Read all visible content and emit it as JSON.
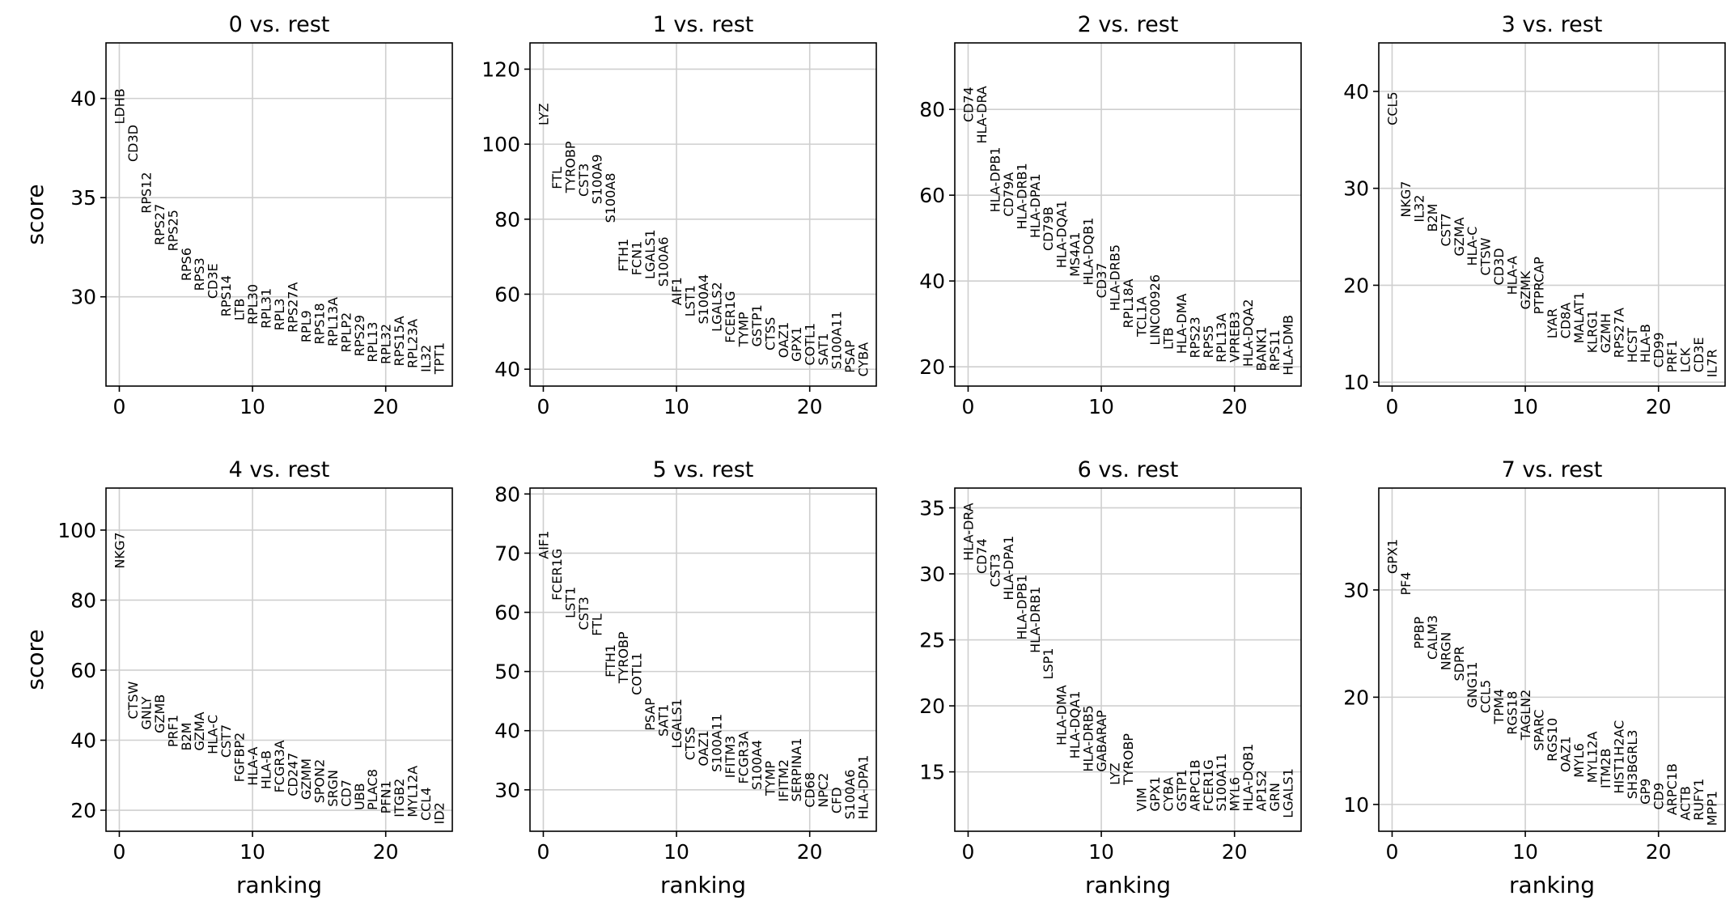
{
  "chart_data": [
    {
      "type": "scatter",
      "title": "0 vs. rest",
      "xlabel": "",
      "ylabel": "score",
      "xlim": [
        -1,
        25
      ],
      "ylim": [
        25.5,
        42.8
      ],
      "xticks": [
        0,
        10,
        20
      ],
      "yticks": [
        30,
        35,
        40
      ],
      "genes": [
        "LDHB",
        "CD3D",
        "RPS12",
        "RPS27",
        "RPS25",
        "RPS6",
        "RPS3",
        "CD3E",
        "RPS14",
        "LTB",
        "RPL30",
        "RPL31",
        "RPL3",
        "RPS27A",
        "RPL9",
        "RPS18",
        "RPL13A",
        "RPLP2",
        "RPS29",
        "RPL13",
        "RPL32",
        "RPS15A",
        "RPL23A",
        "IL32",
        "TPT1"
      ],
      "scores": [
        38.7,
        36.8,
        34.2,
        32.6,
        32.3,
        30.8,
        30.3,
        29.9,
        29.0,
        28.8,
        28.6,
        28.4,
        28.3,
        28.2,
        27.7,
        27.6,
        27.5,
        27.2,
        27.0,
        26.7,
        26.6,
        26.5,
        26.4,
        26.2,
        26.1
      ]
    },
    {
      "type": "scatter",
      "title": "1 vs. rest",
      "xlabel": "",
      "ylabel": "",
      "xlim": [
        -1,
        25
      ],
      "ylim": [
        35.5,
        127
      ],
      "xticks": [
        0,
        10,
        20
      ],
      "yticks": [
        40,
        60,
        80,
        100,
        120
      ],
      "genes": [
        "LYZ",
        "FTL",
        "TYROBP",
        "CST3",
        "S100A9",
        "S100A8",
        "FTH1",
        "FCN1",
        "LGALS1",
        "S100A6",
        "AIF1",
        "LST1",
        "S100A4",
        "LGALS2",
        "FCER1G",
        "TYMP",
        "GSTP1",
        "CTSS",
        "OAZ1",
        "GPX1",
        "COTL1",
        "SAT1",
        "S100A11",
        "PSAP",
        "CYBA"
      ],
      "scores": [
        105,
        88,
        87,
        86,
        84,
        79,
        66,
        65,
        64,
        62,
        57,
        54,
        52,
        50,
        47,
        46,
        46,
        45,
        43,
        42,
        41,
        41,
        40,
        39,
        38
      ]
    },
    {
      "type": "scatter",
      "title": "2 vs. rest",
      "xlabel": "",
      "ylabel": "",
      "xlim": [
        -1,
        25
      ],
      "ylim": [
        15.5,
        95.5
      ],
      "xticks": [
        0,
        10,
        20
      ],
      "yticks": [
        20,
        40,
        60,
        80
      ],
      "genes": [
        "CD74",
        "HLA-DRA",
        "HLA-DPB1",
        "CD79A",
        "HLA-DRB1",
        "HLA-DPA1",
        "CD79B",
        "HLA-DQA1",
        "MS4A1",
        "HLA-DQB1",
        "CD37",
        "HLA-DRB5",
        "RPL18A",
        "TCL1A",
        "LINC00926",
        "LTB",
        "HLA-DMA",
        "RPS23",
        "RPS5",
        "RPL13A",
        "VPREB3",
        "HLA-DQA2",
        "BANK1",
        "RPS11",
        "HLA-DMB"
      ],
      "scores": [
        77,
        72,
        56,
        55,
        52,
        50,
        47,
        43,
        41,
        39,
        36,
        33,
        29,
        27,
        25,
        24,
        23,
        22,
        22,
        21,
        21,
        20,
        19,
        19,
        18
      ]
    },
    {
      "type": "scatter",
      "title": "3 vs. rest",
      "xlabel": "",
      "ylabel": "",
      "xlim": [
        -1,
        25
      ],
      "ylim": [
        9.6,
        45
      ],
      "xticks": [
        0,
        10,
        20
      ],
      "yticks": [
        10,
        20,
        30,
        40
      ],
      "genes": [
        "CCL5",
        "NKG7",
        "IL32",
        "B2M",
        "CST7",
        "GZMA",
        "HLA-C",
        "CTSW",
        "CD3D",
        "HLA-A",
        "GZMK",
        "PTPRCAP",
        "LYAR",
        "CD8A",
        "MALAT1",
        "KLRG1",
        "GZMH",
        "RPS27A",
        "HCST",
        "HLA-B",
        "CD99",
        "PRF1",
        "LCK",
        "CD3E",
        "IL7R"
      ],
      "scores": [
        36.5,
        27,
        26.5,
        25.5,
        24,
        23,
        22,
        21,
        20,
        19,
        17.5,
        17,
        14.5,
        14.5,
        14,
        13,
        13,
        12.5,
        12,
        12,
        11.5,
        11,
        11,
        11,
        10.5
      ]
    },
    {
      "type": "scatter",
      "title": "4 vs. rest",
      "xlabel": "ranking",
      "ylabel": "score",
      "xlim": [
        -1,
        25
      ],
      "ylim": [
        14,
        112
      ],
      "xticks": [
        0,
        10,
        20
      ],
      "yticks": [
        20,
        40,
        60,
        80,
        100
      ],
      "genes": [
        "NKG7",
        "CTSW",
        "GNLY",
        "GZMB",
        "PRF1",
        "B2M",
        "GZMA",
        "HLA-C",
        "CST7",
        "FGFBP2",
        "HLA-A",
        "HLA-B",
        "FCGR3A",
        "CD247",
        "GZMM",
        "SPON2",
        "SRGN",
        "CD7",
        "UBB",
        "PLAC8",
        "PFN1",
        "ITGB2",
        "MYL12A",
        "CCL4",
        "ID2"
      ],
      "scores": [
        89,
        46,
        43,
        42,
        38,
        37,
        37,
        36,
        35,
        28,
        27,
        26,
        25,
        24,
        23,
        22,
        21,
        21,
        20,
        20,
        19,
        18,
        18,
        17,
        16
      ]
    },
    {
      "type": "scatter",
      "title": "5 vs. rest",
      "xlabel": "ranking",
      "ylabel": "",
      "xlim": [
        -1,
        25
      ],
      "ylim": [
        23,
        81
      ],
      "xticks": [
        0,
        10,
        20
      ],
      "yticks": [
        30,
        40,
        50,
        60,
        70,
        80
      ],
      "genes": [
        "AIF1",
        "FCER1G",
        "LST1",
        "CST3",
        "FTL",
        "FTH1",
        "TYROBP",
        "COTL1",
        "PSAP",
        "SAT1",
        "LGALS1",
        "CTSS",
        "OAZ1",
        "S100A11",
        "IFITM3",
        "FCGR3A",
        "S100A4",
        "TYMP",
        "IFITM2",
        "SERPINA1",
        "CD68",
        "NPC2",
        "CFD",
        "S100A6",
        "HLA-DPA1"
      ],
      "scores": [
        69,
        62,
        59,
        57,
        56,
        49,
        48,
        46,
        40,
        39,
        37,
        35,
        34,
        33,
        32,
        31,
        30,
        29,
        28,
        28,
        27,
        27,
        26,
        25,
        25
      ]
    },
    {
      "type": "scatter",
      "title": "6 vs. rest",
      "xlabel": "ranking",
      "ylabel": "",
      "xlim": [
        -1,
        25
      ],
      "ylim": [
        10.5,
        36.5
      ],
      "xticks": [
        0,
        10,
        20
      ],
      "yticks": [
        15,
        20,
        25,
        30,
        35
      ],
      "genes": [
        "HLA-DRA",
        "CD74",
        "CST3",
        "HLA-DPA1",
        "HLA-DPB1",
        "HLA-DRB1",
        "LSP1",
        "HLA-DMA",
        "HLA-DQA1",
        "HLA-DRB5",
        "GABARAP",
        "LYZ",
        "TYROBP",
        "VIM",
        "GPX1",
        "CYBA",
        "GSTP1",
        "ARPC1B",
        "FCER1G",
        "S100A11",
        "MYL6",
        "HLA-DQB1",
        "AP1S2",
        "GRN",
        "LGALS1"
      ],
      "scores": [
        31,
        30,
        29,
        28,
        25,
        24,
        22,
        17,
        16,
        15,
        15,
        14,
        14,
        12,
        12,
        12,
        12,
        12,
        12,
        12,
        12,
        12,
        12,
        12,
        11.5
      ]
    },
    {
      "type": "scatter",
      "title": "7 vs. rest",
      "xlabel": "ranking",
      "ylabel": "",
      "xlim": [
        -1,
        25
      ],
      "ylim": [
        7.5,
        39.5
      ],
      "xticks": [
        0,
        10,
        20
      ],
      "yticks": [
        10,
        20,
        30
      ],
      "genes": [
        "GPX1",
        "PF4",
        "PPBP",
        "CALM3",
        "NRGN",
        "SDPR",
        "GNG11",
        "CCL5",
        "TPM4",
        "RGS18",
        "TAGLN2",
        "SPARC",
        "RGS10",
        "OAZ1",
        "MYL6",
        "MYL12A",
        "ITM2B",
        "HIST1H2AC",
        "SH3BGRL3",
        "GP9",
        "CD9",
        "ARPC1B",
        "ACTB",
        "RUFY1",
        "MPP1"
      ],
      "scores": [
        31.5,
        29.5,
        24.5,
        23.5,
        22.5,
        21.5,
        19,
        18.5,
        17.5,
        16.5,
        16,
        15,
        14,
        13,
        12.5,
        12,
        11.5,
        11,
        10.5,
        10,
        9.5,
        9,
        8.5,
        8.5,
        8
      ]
    }
  ]
}
